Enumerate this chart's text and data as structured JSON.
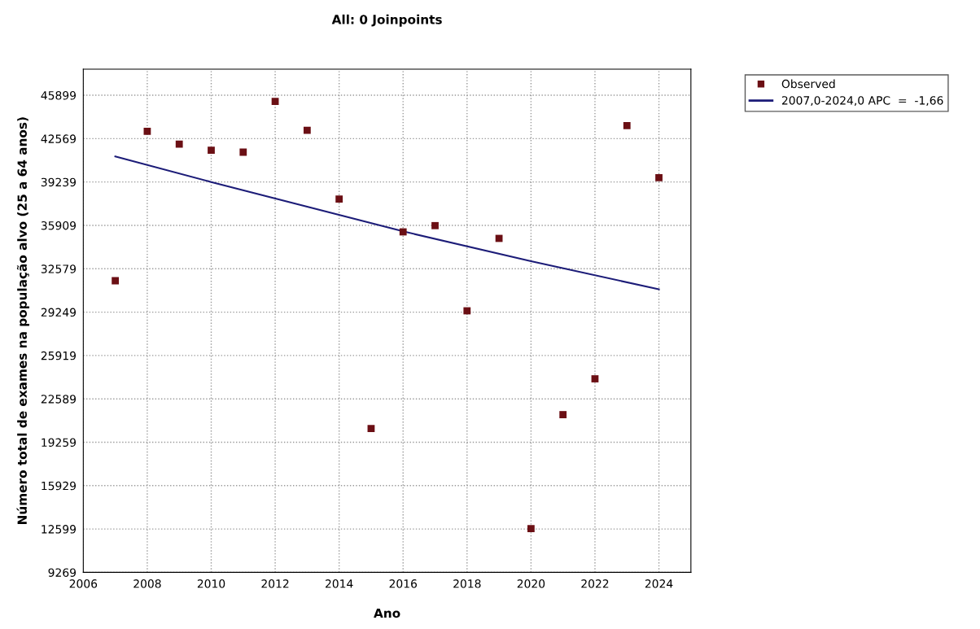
{
  "chart_data": {
    "type": "scatter",
    "title": "All: 0 Joinpoints",
    "xlabel": "Ano",
    "ylabel": "Número total de exames na população alvo (25 a 64 anos)",
    "series": [
      {
        "name": "Observed",
        "color": "#6b0f14",
        "marker": "square",
        "x": [
          2007,
          2008,
          2009,
          2010,
          2011,
          2012,
          2013,
          2014,
          2015,
          2016,
          2017,
          2018,
          2019,
          2020,
          2021,
          2022,
          2023,
          2024
        ],
        "values": [
          31660,
          43130,
          42150,
          41680,
          41530,
          45420,
          43210,
          37930,
          20320,
          35410,
          35890,
          29350,
          34910,
          12630,
          21380,
          24130,
          43570,
          39570
        ]
      },
      {
        "name": "2007,0-2024,0 APC  =  -1,66",
        "type": "line",
        "color": "#1c1c78",
        "marker": "none",
        "line_style": "solid",
        "x": [
          2007,
          2010,
          2016,
          2020,
          2024
        ],
        "values": [
          41200,
          39240,
          35450,
          33160,
          31000
        ]
      }
    ],
    "xlim": [
      2006,
      2025
    ],
    "xticks": [
      2006,
      2008,
      2010,
      2012,
      2014,
      2016,
      2018,
      2020,
      2022,
      2024
    ],
    "ylim": [
      9269,
      47900
    ],
    "yticks": [
      9269,
      12599,
      15929,
      19259,
      22589,
      25919,
      29249,
      32579,
      35909,
      39239,
      42569,
      45899
    ],
    "grid": true,
    "legend": "top right"
  }
}
